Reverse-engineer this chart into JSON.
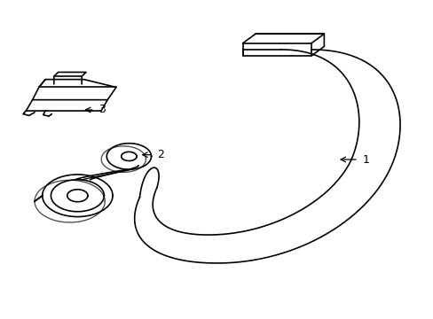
{
  "background_color": "#ffffff",
  "line_color": "#000000",
  "line_width": 1.2,
  "fig_width": 4.89,
  "fig_height": 3.6,
  "dpi": 100
}
